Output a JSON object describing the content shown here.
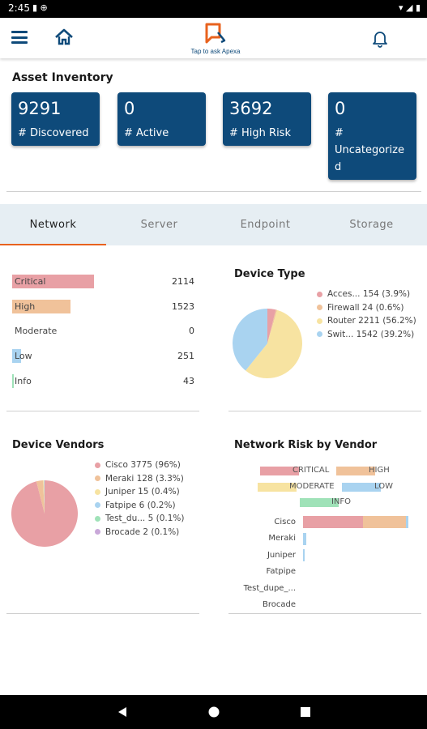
{
  "status_bar": {
    "time": "2:45",
    "left_icons": "▮ ⊕",
    "right_icons": "▾ ◢ ▮"
  },
  "app_bar": {
    "logo_caption": "Tap to ask Apexa"
  },
  "asset_inventory": {
    "title": "Asset Inventory",
    "tiles": [
      {
        "value": "9291",
        "label": "# Discovered"
      },
      {
        "value": "0",
        "label": "# Active"
      },
      {
        "value": "3692",
        "label": "# High Risk"
      },
      {
        "value": "0",
        "label_lines": [
          "#",
          "Uncategorize",
          "d"
        ]
      }
    ]
  },
  "tabs": [
    "Network",
    "Server",
    "Endpoint",
    "Storage"
  ],
  "active_tab": "Network",
  "risk_summary": [
    {
      "label": "Critical",
      "value": "2114",
      "fill": 0.45,
      "color": "#e8a0a5"
    },
    {
      "label": "High",
      "value": "1523",
      "fill": 0.32,
      "color": "#f0c29a"
    },
    {
      "label": "Moderate",
      "value": "0",
      "fill": 0,
      "color": "#f7e3a1"
    },
    {
      "label": "Low",
      "value": "251",
      "fill": 0.05,
      "color": "#a9d3f0"
    },
    {
      "label": "Info",
      "value": "43",
      "fill": 0.01,
      "color": "#9fe2b8"
    }
  ],
  "device_type": {
    "title": "Device Type",
    "legend": [
      {
        "label": "Acces... 154 (3.9%)",
        "color": "#e8a0a5"
      },
      {
        "label": "Firewall  24 (0.6%)",
        "color": "#f0c29a"
      },
      {
        "label": "Router 2211 (56.2%)",
        "color": "#f7e3a1"
      },
      {
        "label": "Swit... 1542 (39.2%)",
        "color": "#a9d3f0"
      }
    ]
  },
  "device_vendors": {
    "title": "Device Vendors",
    "legend": [
      {
        "label": "Cisco   3775 (96%)",
        "color": "#e8a0a5"
      },
      {
        "label": "Meraki  128 (3.3%)",
        "color": "#f0c29a"
      },
      {
        "label": "Juniper  15 (0.4%)",
        "color": "#f7e3a1"
      },
      {
        "label": "Fatpipe   6 (0.2%)",
        "color": "#a9d3f0"
      },
      {
        "label": "Test_du...  5 (0.1%)",
        "color": "#9fe2b8"
      },
      {
        "label": "Brocade   2 (0.1%)",
        "color": "#c9a8d9"
      }
    ]
  },
  "network_risk_by_vendor": {
    "title": "Network Risk by Vendor",
    "legend": [
      "CRITICAL",
      "HIGH",
      "MODERATE",
      "LOW",
      "INFO"
    ],
    "vendors": [
      "Cisco",
      "Meraki",
      "Juniper",
      "Fatpipe",
      "Test_dupe_...",
      "Brocade"
    ]
  },
  "chart_data": [
    {
      "type": "pie",
      "title": "Device Type",
      "labels": [
        "Acces...",
        "Firewall",
        "Router",
        "Swit..."
      ],
      "values": [
        154,
        24,
        2211,
        1542
      ],
      "colors": [
        "#e8a0a5",
        "#f0c29a",
        "#f7e3a1",
        "#a9d3f0"
      ]
    },
    {
      "type": "pie",
      "title": "Device Vendors",
      "labels": [
        "Cisco",
        "Meraki",
        "Juniper",
        "Fatpipe",
        "Test_du...",
        "Brocade"
      ],
      "values": [
        3775,
        128,
        15,
        6,
        5,
        2
      ],
      "colors": [
        "#e8a0a5",
        "#f0c29a",
        "#f7e3a1",
        "#a9d3f0",
        "#9fe2b8",
        "#c9a8d9"
      ]
    },
    {
      "type": "bar",
      "orientation": "horizontal",
      "stacked": true,
      "title": "Network Risk by Vendor",
      "categories": [
        "Cisco",
        "Meraki",
        "Juniper",
        "Fatpipe",
        "Test_dupe_...",
        "Brocade"
      ],
      "series": [
        {
          "name": "CRITICAL",
          "color": "#e8a0a5",
          "values": [
            2100,
            0,
            0,
            0,
            0,
            0
          ]
        },
        {
          "name": "HIGH",
          "color": "#f0c29a",
          "values": [
            1500,
            0,
            0,
            0,
            0,
            0
          ]
        },
        {
          "name": "MODERATE",
          "color": "#f7e3a1",
          "values": [
            0,
            0,
            0,
            0,
            0,
            0
          ]
        },
        {
          "name": "LOW",
          "color": "#a9d3f0",
          "values": [
            100,
            120,
            5,
            0,
            0,
            0
          ]
        },
        {
          "name": "INFO",
          "color": "#9fe2b8",
          "values": [
            0,
            0,
            0,
            0,
            0,
            0
          ]
        }
      ],
      "xlim": [
        0,
        3750
      ],
      "legend_position": "top",
      "grid": false
    }
  ]
}
